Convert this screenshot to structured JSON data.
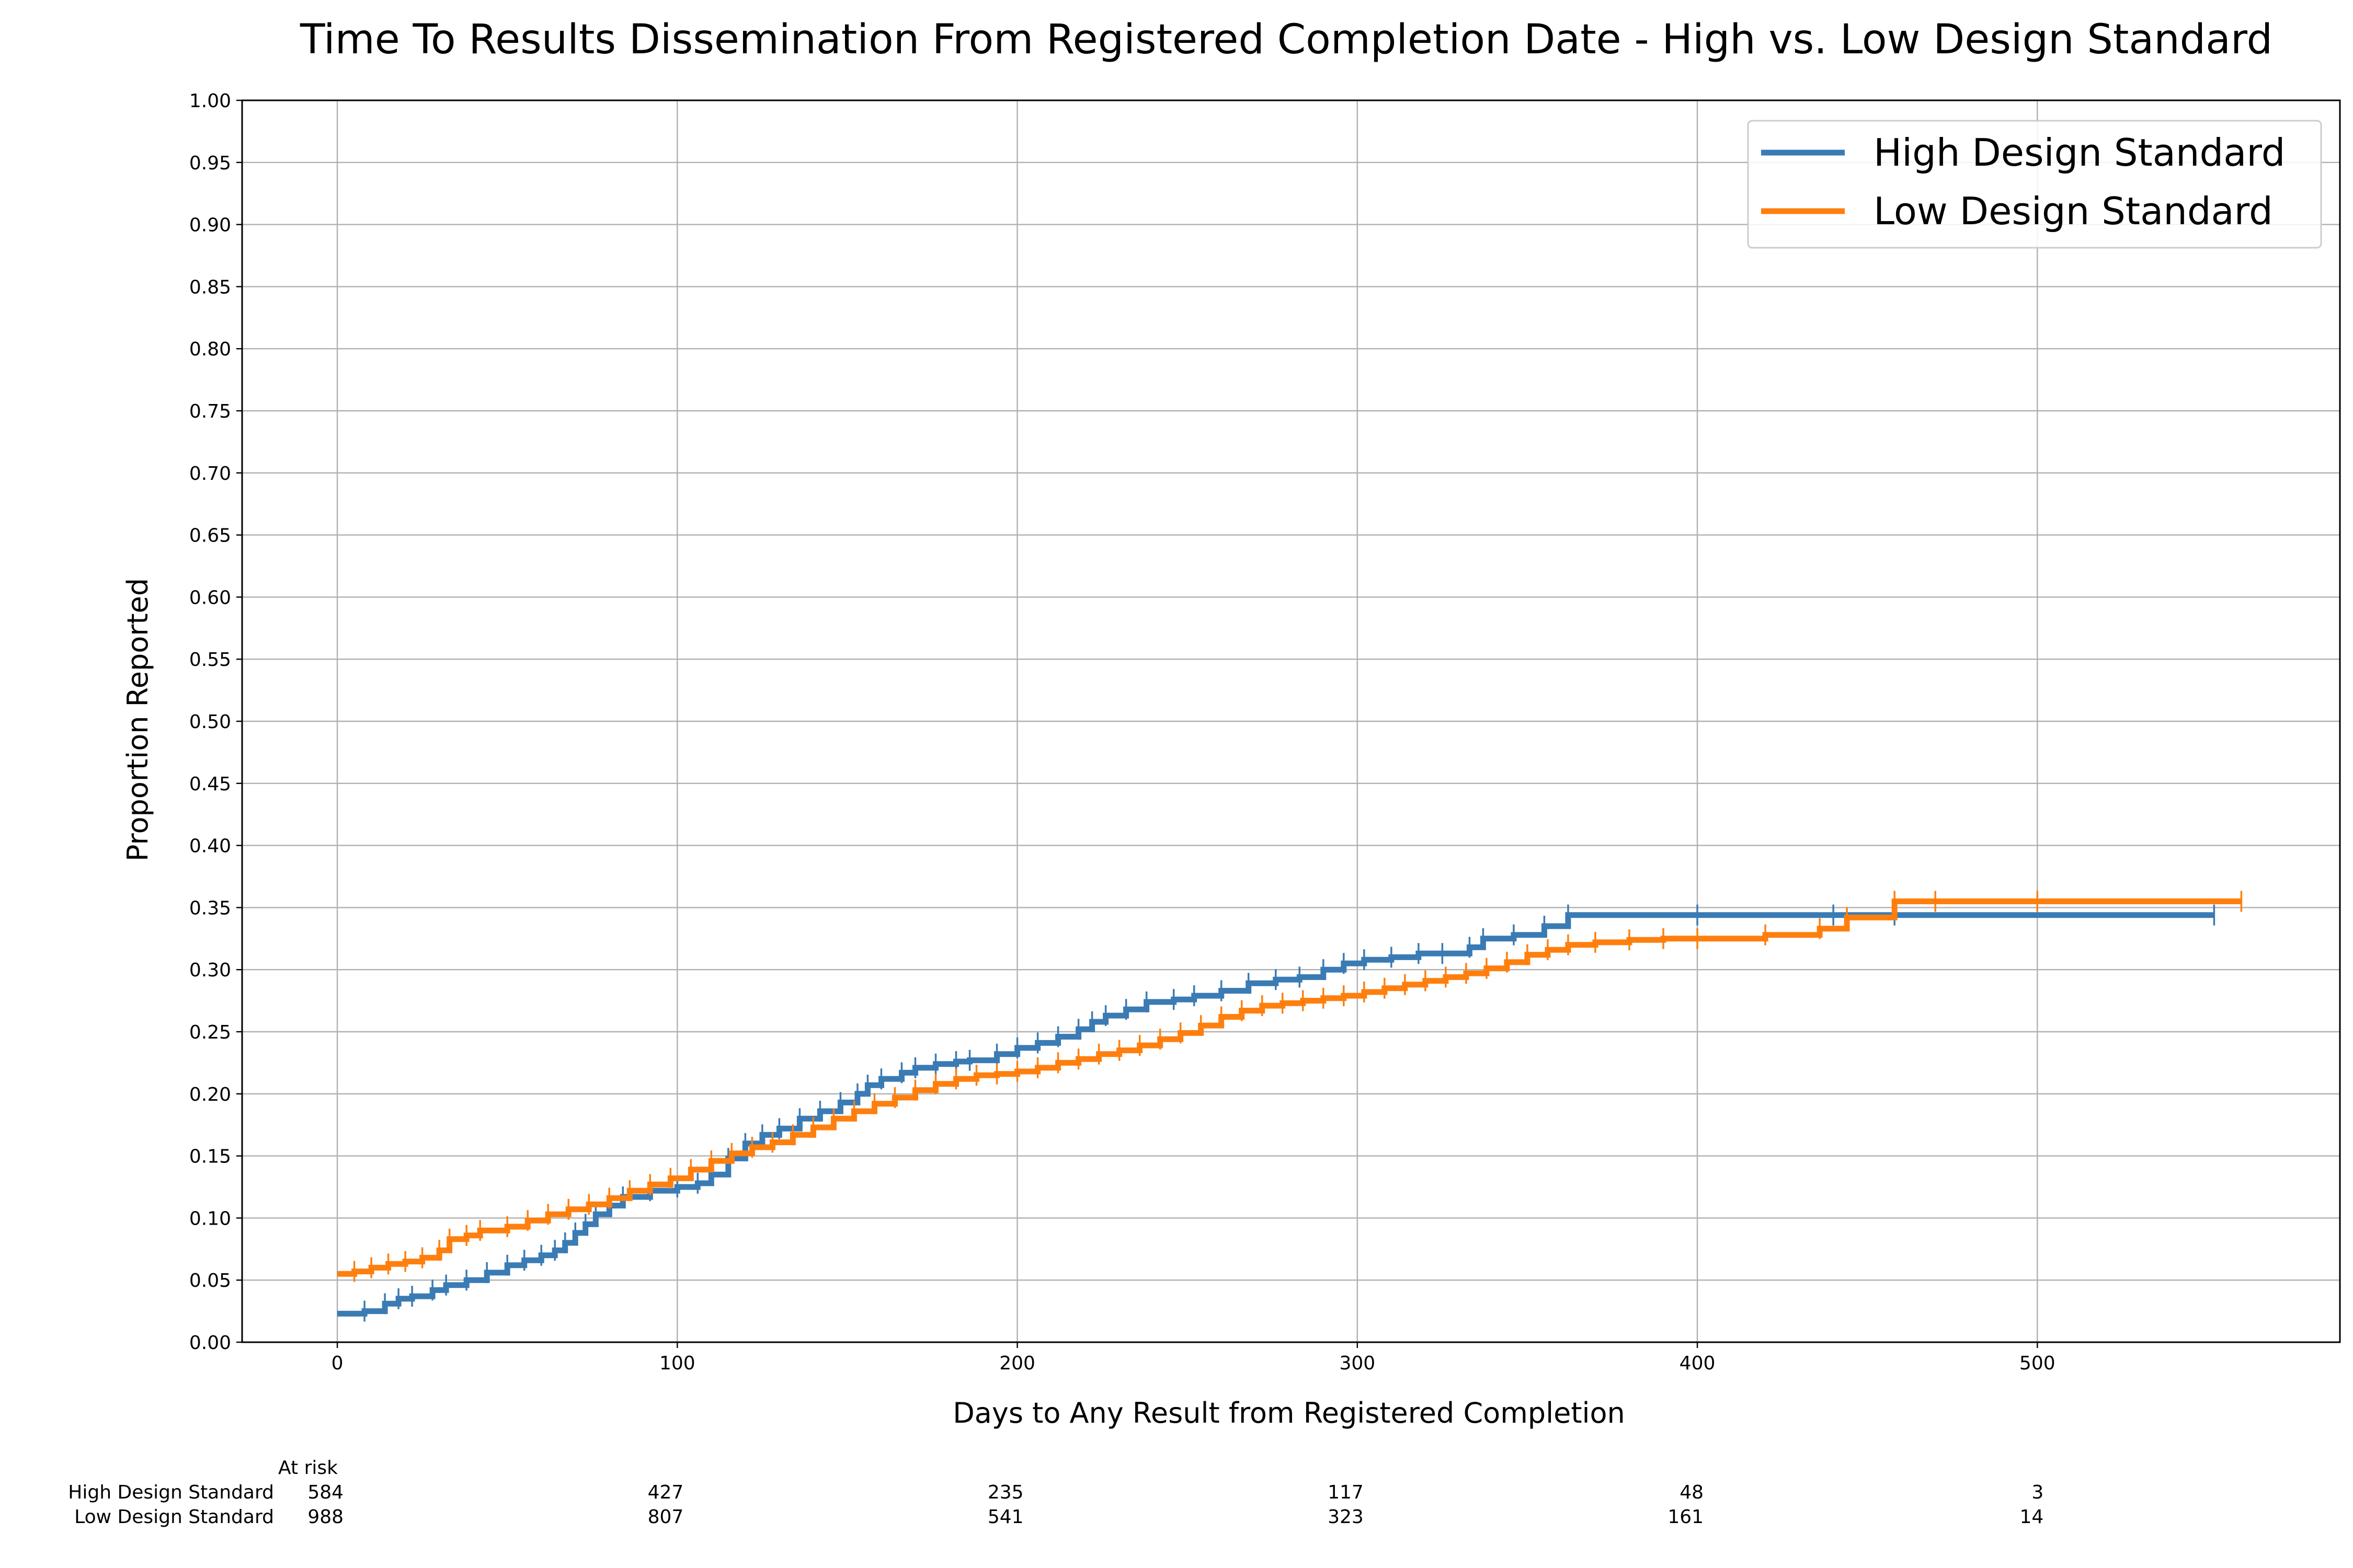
{
  "chart_data": {
    "type": "line",
    "title": "Time To Results Dissemination From Registered Completion Date - High vs. Low Design Standard",
    "xlabel": "Days to Any Result from Registered Completion",
    "ylabel": "Proportion Reported",
    "xlim": [
      -28,
      589
    ],
    "ylim": [
      0,
      1
    ],
    "x_ticks": [
      0,
      100,
      200,
      300,
      400,
      500
    ],
    "x_tick_labels": [
      "0",
      "100",
      "200",
      "300",
      "400",
      "500"
    ],
    "y_ticks": [
      0,
      0.05,
      0.1,
      0.15,
      0.2,
      0.25,
      0.3,
      0.35,
      0.4,
      0.45,
      0.5,
      0.55,
      0.6,
      0.65,
      0.7,
      0.75,
      0.8,
      0.85,
      0.9,
      0.95,
      1.0
    ],
    "y_tick_labels": [
      "0.00",
      "0.05",
      "0.10",
      "0.15",
      "0.20",
      "0.25",
      "0.30",
      "0.35",
      "0.40",
      "0.45",
      "0.50",
      "0.55",
      "0.60",
      "0.65",
      "0.70",
      "0.75",
      "0.80",
      "0.85",
      "0.90",
      "0.95",
      "1.00"
    ],
    "grid": true,
    "legend": "top-right",
    "series": [
      {
        "name": "High Design Standard",
        "color": "#3a7bb4",
        "step": true,
        "x": [
          0,
          8,
          14,
          18,
          22,
          28,
          32,
          38,
          44,
          50,
          55,
          60,
          64,
          67,
          70,
          73,
          76,
          80,
          84,
          92,
          100,
          106,
          110,
          115,
          120,
          125,
          130,
          136,
          142,
          148,
          153,
          156,
          160,
          166,
          170,
          176,
          182,
          186,
          194,
          200,
          206,
          212,
          218,
          222,
          226,
          232,
          238,
          246,
          252,
          260,
          268,
          276,
          283,
          290,
          296,
          302,
          310,
          318,
          325,
          333,
          337,
          346,
          355,
          362,
          400,
          440,
          458,
          552
        ],
        "y": [
          0.023,
          0.025,
          0.031,
          0.035,
          0.037,
          0.042,
          0.046,
          0.05,
          0.056,
          0.062,
          0.066,
          0.07,
          0.074,
          0.08,
          0.088,
          0.095,
          0.103,
          0.11,
          0.117,
          0.122,
          0.125,
          0.128,
          0.135,
          0.148,
          0.16,
          0.167,
          0.172,
          0.18,
          0.186,
          0.193,
          0.2,
          0.207,
          0.212,
          0.217,
          0.221,
          0.224,
          0.226,
          0.227,
          0.232,
          0.237,
          0.241,
          0.246,
          0.252,
          0.258,
          0.263,
          0.268,
          0.274,
          0.276,
          0.279,
          0.283,
          0.289,
          0.292,
          0.294,
          0.3,
          0.305,
          0.308,
          0.31,
          0.313,
          0.313,
          0.318,
          0.325,
          0.328,
          0.335,
          0.344,
          0.344,
          0.344,
          0.344,
          0.344
        ]
      },
      {
        "name": "Low Design Standard",
        "color": "#ff7f0e",
        "step": true,
        "x": [
          0,
          5,
          10,
          15,
          20,
          25,
          30,
          33,
          38,
          42,
          50,
          56,
          62,
          68,
          74,
          80,
          86,
          92,
          98,
          104,
          110,
          116,
          122,
          128,
          134,
          140,
          146,
          152,
          158,
          164,
          170,
          176,
          182,
          188,
          194,
          200,
          206,
          212,
          218,
          224,
          230,
          236,
          242,
          248,
          254,
          260,
          266,
          272,
          278,
          284,
          290,
          296,
          302,
          308,
          314,
          320,
          326,
          332,
          338,
          344,
          350,
          356,
          362,
          370,
          380,
          390,
          400,
          420,
          436,
          444,
          458,
          470,
          500,
          560
        ],
        "y": [
          0.055,
          0.057,
          0.06,
          0.063,
          0.065,
          0.068,
          0.074,
          0.083,
          0.086,
          0.09,
          0.093,
          0.098,
          0.103,
          0.107,
          0.111,
          0.116,
          0.122,
          0.127,
          0.132,
          0.139,
          0.146,
          0.152,
          0.157,
          0.161,
          0.167,
          0.173,
          0.18,
          0.186,
          0.192,
          0.197,
          0.203,
          0.208,
          0.212,
          0.215,
          0.216,
          0.218,
          0.221,
          0.225,
          0.228,
          0.232,
          0.235,
          0.239,
          0.244,
          0.249,
          0.255,
          0.262,
          0.267,
          0.271,
          0.273,
          0.275,
          0.277,
          0.279,
          0.282,
          0.285,
          0.288,
          0.291,
          0.294,
          0.297,
          0.301,
          0.306,
          0.312,
          0.316,
          0.32,
          0.322,
          0.324,
          0.325,
          0.325,
          0.328,
          0.333,
          0.342,
          0.355,
          0.355,
          0.355,
          0.355
        ]
      }
    ],
    "at_risk": {
      "header": "At risk",
      "rows": [
        {
          "name": "High Design Standard",
          "values": [
            "584",
            "427",
            "235",
            "117",
            "48",
            "3"
          ]
        },
        {
          "name": "Low Design Standard",
          "values": [
            "988",
            "807",
            "541",
            "323",
            "161",
            "14"
          ]
        }
      ]
    }
  }
}
